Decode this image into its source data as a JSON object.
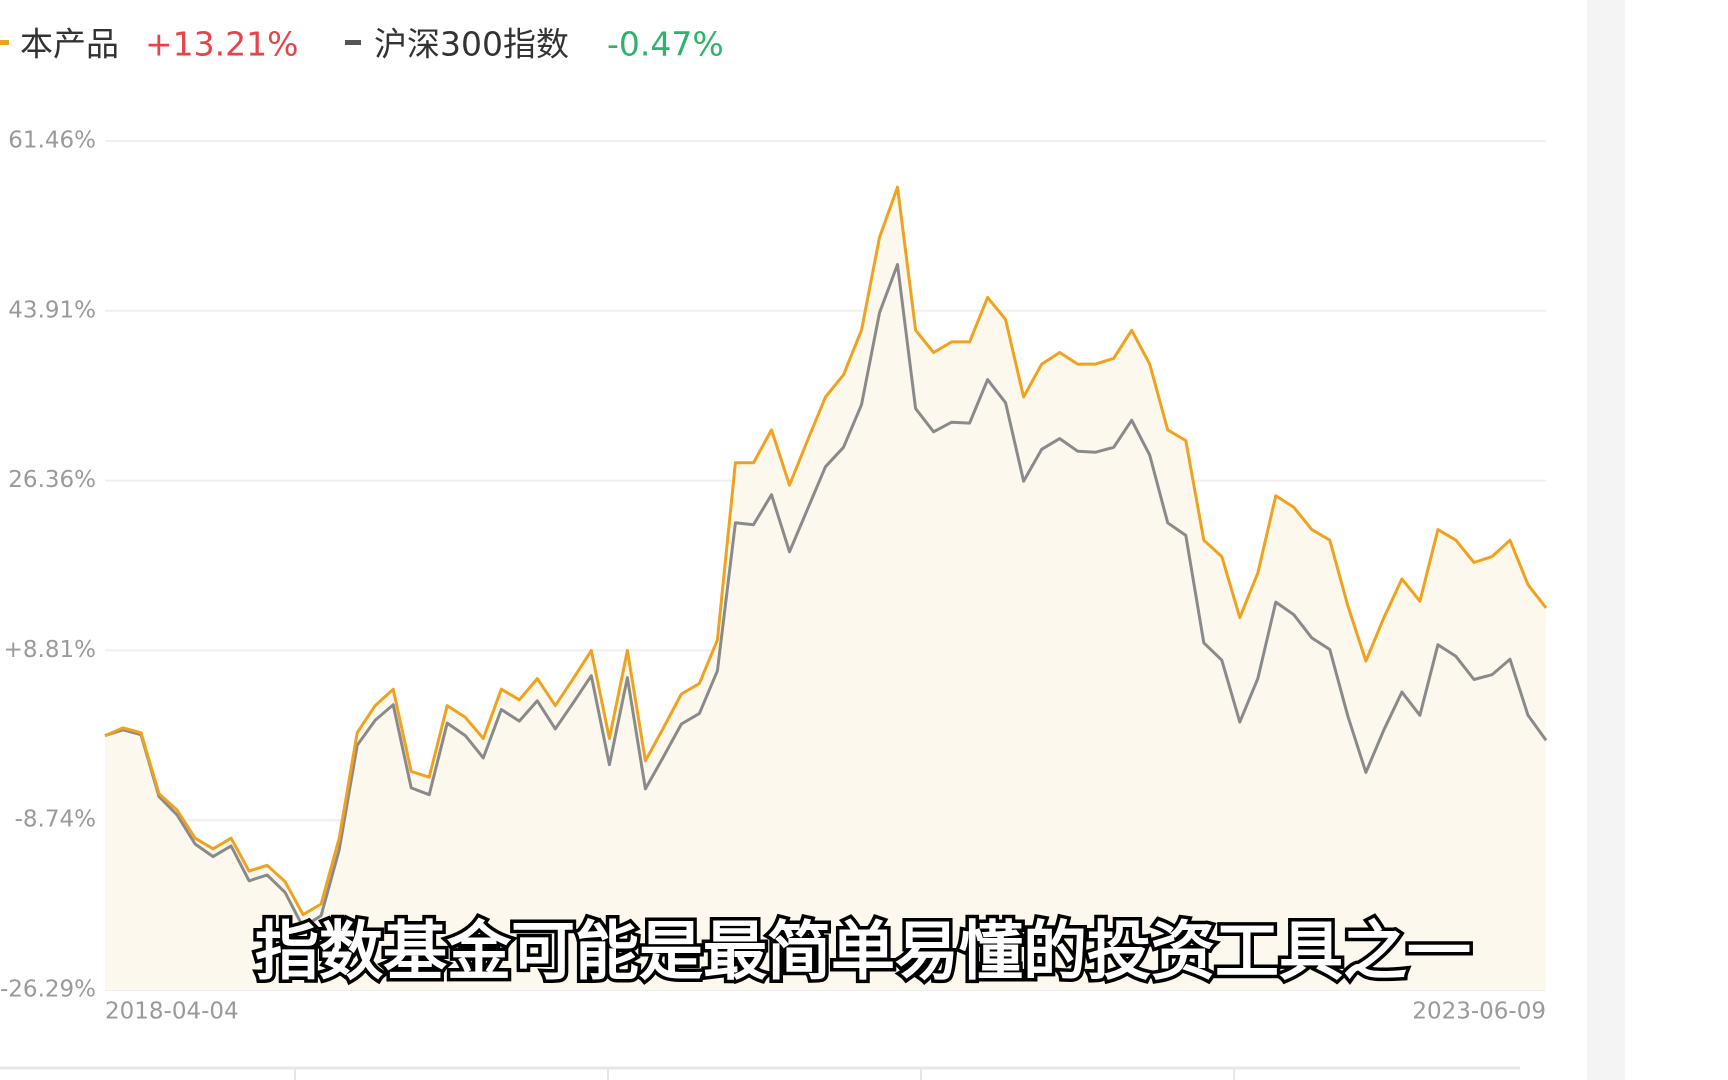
{
  "chart_data": {
    "type": "line",
    "caption": "指数基金可能是最简单易懂的投资工具之一",
    "categories": [
      "2018-04-04",
      null,
      null,
      null,
      null,
      null,
      null,
      null,
      null,
      null,
      null,
      null,
      null,
      null,
      null,
      null,
      null,
      null,
      null,
      null,
      null,
      null,
      null,
      null,
      null,
      null,
      null,
      null,
      null,
      null,
      null,
      null,
      null,
      null,
      null,
      null,
      null,
      null,
      null,
      null,
      null,
      null,
      null,
      null,
      null,
      null,
      null,
      null,
      null,
      null,
      null,
      null,
      null,
      null,
      null,
      null,
      null,
      null,
      null,
      null,
      null,
      null,
      null,
      null,
      null,
      null,
      null,
      null,
      null,
      null,
      null,
      null,
      null,
      null,
      null,
      null,
      null,
      null,
      null,
      null,
      "2023-06-09"
    ],
    "series": [
      {
        "name": "本产品",
        "change_label": "+13.21%",
        "color": "#f0a21e",
        "values": [
          0.0,
          0.8,
          0.3,
          -6.0,
          -7.7,
          -10.6,
          -11.7,
          -10.6,
          -14.0,
          -13.4,
          -15.1,
          -18.5,
          -17.4,
          -10.6,
          0.3,
          3.1,
          4.8,
          -3.7,
          -4.3,
          3.1,
          1.9,
          -0.3,
          4.8,
          3.7,
          5.9,
          3.1,
          5.9,
          8.8,
          -0.3,
          8.8,
          -2.6,
          0.8,
          4.3,
          5.4,
          9.9,
          28.2,
          28.2,
          31.6,
          25.9,
          30.5,
          35.0,
          37.3,
          41.9,
          51.5,
          56.7,
          41.9,
          39.6,
          40.7,
          40.7,
          45.3,
          43.0,
          35.0,
          38.4,
          39.6,
          38.4,
          38.4,
          39.0,
          41.9,
          38.4,
          31.6,
          30.5,
          20.2,
          18.5,
          12.2,
          16.8,
          24.8,
          23.6,
          21.3,
          20.2,
          13.4,
          7.7,
          12.2,
          16.2,
          13.9,
          21.3,
          20.2,
          17.9,
          18.5,
          20.2,
          15.6,
          13.21
        ]
      },
      {
        "name": "沪深300指数",
        "change_label": "-0.47%",
        "color": "#8a8a8a",
        "values": [
          0.0,
          0.6,
          0.1,
          -6.3,
          -8.2,
          -11.2,
          -12.5,
          -11.4,
          -15.0,
          -14.4,
          -16.2,
          -19.8,
          -18.6,
          -11.8,
          -1.0,
          1.6,
          3.2,
          -5.4,
          -6.1,
          1.3,
          0.0,
          -2.3,
          2.7,
          1.5,
          3.6,
          0.7,
          3.4,
          6.2,
          -3.0,
          6.0,
          -5.5,
          -2.2,
          1.2,
          2.3,
          6.7,
          22.0,
          21.8,
          24.9,
          19.0,
          23.4,
          27.8,
          29.8,
          34.2,
          43.7,
          48.7,
          33.8,
          31.4,
          32.4,
          32.3,
          36.8,
          34.4,
          26.3,
          29.6,
          30.7,
          29.4,
          29.3,
          29.8,
          32.6,
          29.0,
          22.0,
          20.7,
          9.6,
          7.8,
          1.4,
          5.9,
          13.8,
          12.5,
          10.1,
          8.9,
          2.0,
          -3.8,
          0.6,
          4.5,
          2.1,
          9.4,
          8.2,
          5.8,
          6.3,
          7.9,
          2.1,
          -0.47
        ]
      }
    ],
    "ylim": [
      -26.29,
      61.46
    ],
    "yticks": [
      {
        "value": 61.46,
        "label": "61.46%"
      },
      {
        "value": 43.91,
        "label": "43.91%"
      },
      {
        "value": 26.36,
        "label": "26.36%"
      },
      {
        "value": 8.81,
        "label": "+8.81%"
      },
      {
        "value": -8.74,
        "label": "-8.74%"
      },
      {
        "value": -26.29,
        "label": "-26.29%"
      }
    ],
    "grid": true,
    "fill_area": true
  }
}
